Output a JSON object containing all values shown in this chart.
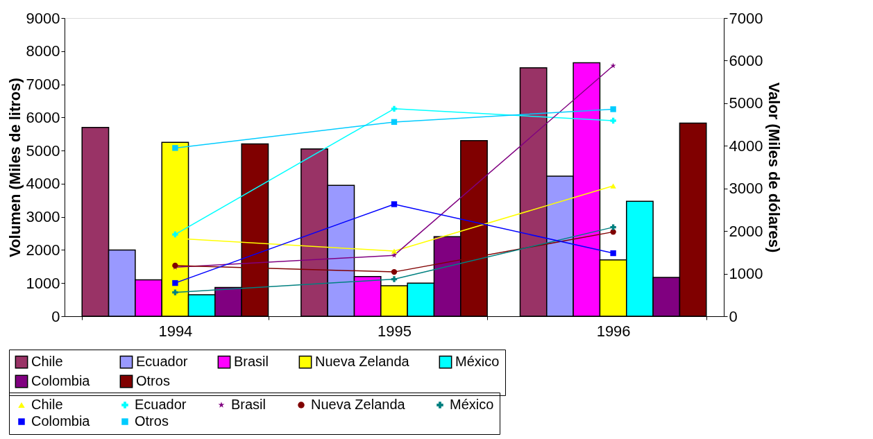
{
  "chart_data": {
    "type": "bar",
    "categories": [
      "1994",
      "1995",
      "1996"
    ],
    "ylabel": "Volumen (Miles de litros)",
    "y2label": "Valor (Miles de dólares)",
    "ylim": [
      0,
      9000
    ],
    "yticks": [
      0,
      1000,
      2000,
      3000,
      4000,
      5000,
      6000,
      7000,
      8000,
      9000
    ],
    "y2lim": [
      0,
      7000
    ],
    "y2ticks": [
      0,
      1000,
      2000,
      3000,
      4000,
      5000,
      6000,
      7000
    ],
    "legend": "bottom",
    "grid": false,
    "series": [
      {
        "name": "Chile",
        "type": "bar",
        "color": "#993366",
        "values": [
          5700,
          5050,
          7500
        ]
      },
      {
        "name": "Ecuador",
        "type": "bar",
        "color": "#9999ff",
        "values": [
          2000,
          3950,
          4230
        ]
      },
      {
        "name": "Brasil",
        "type": "bar",
        "color": "#ff00ff",
        "values": [
          1100,
          1200,
          7650
        ]
      },
      {
        "name": "Nueva Zelanda",
        "type": "bar",
        "color": "#ffff00",
        "values": [
          5250,
          920,
          1700
        ]
      },
      {
        "name": "México",
        "type": "bar",
        "color": "#00ffff",
        "values": [
          650,
          1000,
          3470
        ]
      },
      {
        "name": "Colombia",
        "type": "bar",
        "color": "#800080",
        "values": [
          870,
          2400,
          1170
        ]
      },
      {
        "name": "Otros",
        "type": "bar",
        "color": "#800000",
        "values": [
          5200,
          5300,
          5830
        ]
      },
      {
        "name": "Chile",
        "type": "line",
        "axis": "y2",
        "marker": "triangle",
        "color": "#ffff00",
        "values": [
          1830,
          1530,
          3060
        ]
      },
      {
        "name": "Ecuador",
        "type": "line",
        "axis": "y2",
        "marker": "cross",
        "color": "#00ffff",
        "values": [
          1920,
          4870,
          4590
        ]
      },
      {
        "name": "Brasil",
        "type": "line",
        "axis": "y2",
        "marker": "star",
        "color": "#800080",
        "values": [
          1150,
          1430,
          5880
        ]
      },
      {
        "name": "Nueva Zelanda",
        "type": "line",
        "axis": "y2",
        "marker": "circle",
        "color": "#800000",
        "values": [
          1190,
          1040,
          1980
        ]
      },
      {
        "name": "México",
        "type": "line",
        "axis": "y2",
        "marker": "cross",
        "color": "#008080",
        "values": [
          560,
          870,
          2090
        ]
      },
      {
        "name": "Colombia",
        "type": "line",
        "axis": "y2",
        "marker": "square",
        "color": "#0000ff",
        "values": [
          780,
          2630,
          1480
        ]
      },
      {
        "name": "Otros",
        "type": "line",
        "axis": "y2",
        "marker": "square",
        "color": "#00ccff",
        "values": [
          3950,
          4560,
          4860
        ]
      }
    ]
  }
}
